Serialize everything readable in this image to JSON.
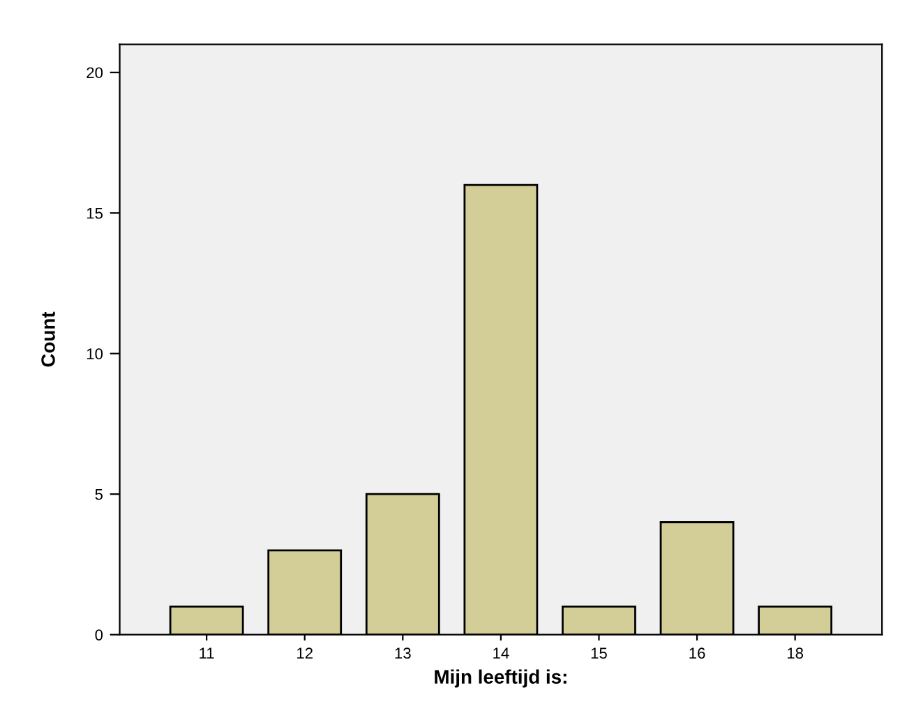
{
  "chart_data": {
    "type": "bar",
    "xlabel": "Mijn leeftijd is:",
    "ylabel": "Count",
    "categories": [
      "11",
      "12",
      "13",
      "14",
      "15",
      "16",
      "18"
    ],
    "values": [
      1,
      3,
      5,
      16,
      1,
      4,
      1
    ],
    "color": "#d3ce97",
    "ylim": [
      0,
      21
    ],
    "yticks": [
      0,
      5,
      10,
      15,
      20
    ],
    "grid": false
  }
}
